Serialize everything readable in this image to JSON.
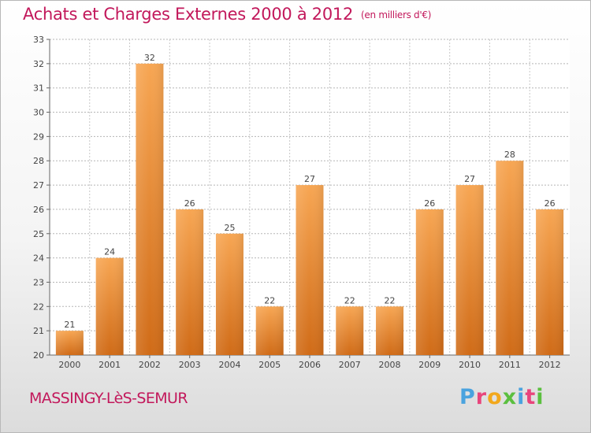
{
  "chart_data": {
    "type": "bar",
    "title": "Achats et Charges Externes 2000 à 2012",
    "subtitle": "(en milliers d'€)",
    "categories": [
      "2000",
      "2001",
      "2002",
      "2003",
      "2004",
      "2005",
      "2006",
      "2007",
      "2008",
      "2009",
      "2010",
      "2011",
      "2012"
    ],
    "values": [
      21,
      24,
      32,
      26,
      25,
      22,
      27,
      22,
      22,
      26,
      27,
      28,
      26
    ],
    "ylim": [
      20,
      33
    ],
    "yticks": [
      20,
      21,
      22,
      23,
      24,
      25,
      26,
      27,
      28,
      29,
      30,
      31,
      32,
      33
    ],
    "grid": true,
    "bar_color": "#f2913a"
  },
  "footer": {
    "town": "MASSINGY-LèS-SEMUR",
    "logo": "Proxiti",
    "logo_colors": [
      "#4aa3df",
      "#e8457c",
      "#f2a81d",
      "#5bbf3f",
      "#4aa3df",
      "#e8457c",
      "#5bbf3f"
    ]
  }
}
